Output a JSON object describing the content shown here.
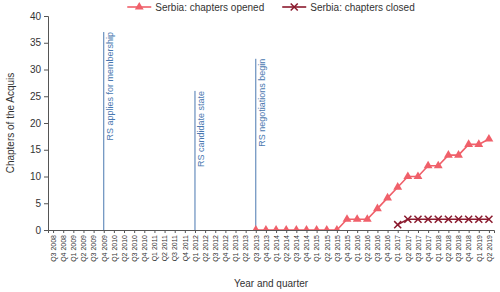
{
  "chart_data": {
    "type": "line",
    "x_label": "Year and quarter",
    "y_label": "Chapters of the Acquis",
    "categories": [
      "Q3 2008",
      "Q4 2008",
      "Q1 2009",
      "Q2 2009",
      "Q3 2009",
      "Q4 2009",
      "Q1 2010",
      "Q2 2010",
      "Q3 2010",
      "Q4 2010",
      "Q1 2011",
      "Q2 2011",
      "Q3 2011",
      "Q4 2011",
      "Q1 2012",
      "Q2 2012",
      "Q3 2012",
      "Q4 2012",
      "Q1 2013",
      "Q2 2013",
      "Q3 2013",
      "Q4 2013",
      "Q1 2014",
      "Q2 2014",
      "Q3 2014",
      "Q4 2014",
      "Q1 2015",
      "Q2 2015",
      "Q3 2015",
      "Q4 2015",
      "Q1 2016",
      "Q2 2016",
      "Q3 2016",
      "Q4 2016",
      "Q1 2017",
      "Q2 2017",
      "Q3 2017",
      "Q4 2017",
      "Q1 2018",
      "Q2 2018",
      "Q3 2018",
      "Q4 2018",
      "Q1 2019",
      "Q2 2019"
    ],
    "series": [
      {
        "name": "Serbia: chapters opened",
        "color": "#f0606a",
        "marker": "triangle",
        "line_style": "solid",
        "values": [
          null,
          null,
          null,
          null,
          null,
          null,
          null,
          null,
          null,
          null,
          null,
          null,
          null,
          null,
          null,
          null,
          null,
          null,
          null,
          null,
          0,
          0,
          0,
          0,
          0,
          0,
          0,
          0,
          0,
          2,
          2,
          2,
          4,
          6,
          8,
          10,
          10,
          12,
          12,
          14,
          14,
          16,
          16,
          17
        ]
      },
      {
        "name": "Serbia: chapters closed",
        "color": "#8b1a2e",
        "marker": "x",
        "line_style": "solid",
        "values": [
          null,
          null,
          null,
          null,
          null,
          null,
          null,
          null,
          null,
          null,
          null,
          null,
          null,
          null,
          null,
          null,
          null,
          null,
          null,
          null,
          null,
          null,
          null,
          null,
          null,
          null,
          null,
          null,
          null,
          null,
          null,
          null,
          null,
          null,
          1,
          2,
          2,
          2,
          2,
          2,
          2,
          2,
          2,
          2
        ]
      }
    ],
    "annotations": [
      {
        "text": "RS applies for membership",
        "x": "Q4 2009",
        "y": 37,
        "color": "#4a78b0"
      },
      {
        "text": "RS candidate state",
        "x": "Q1 2012",
        "y": 26,
        "color": "#4a78b0"
      },
      {
        "text": "RS negotiations begin",
        "x": "Q3 2013",
        "y": 32,
        "color": "#4a78b0"
      }
    ],
    "ylim": [
      0,
      40
    ],
    "yticks": [
      0,
      5,
      10,
      15,
      20,
      25,
      30,
      35,
      40
    ],
    "grid": false,
    "legend": "top"
  }
}
